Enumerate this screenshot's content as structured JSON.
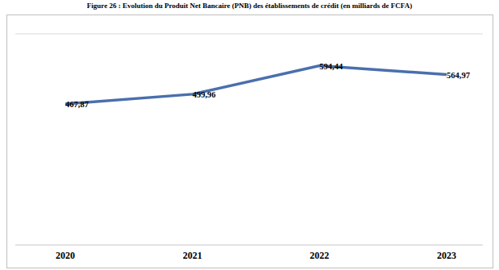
{
  "chart_data": {
    "type": "line",
    "title": "Figure 26 : Evolution du Produit Net Bancaire (PNB) des établissements de crédit (en milliards de FCFA)",
    "categories": [
      "2020",
      "2021",
      "2022",
      "2023"
    ],
    "values": [
      467.87,
      499.96,
      594.44,
      564.97
    ],
    "value_labels": [
      "467,87",
      "499,96",
      "594,44",
      "564,97"
    ],
    "color": "#4a6fad",
    "ylim": [
      0,
      700
    ],
    "yticks": [
      0,
      100,
      200,
      300,
      400,
      500,
      600,
      700
    ],
    "grid": true,
    "data_labels": true,
    "tick_labels": "x"
  }
}
